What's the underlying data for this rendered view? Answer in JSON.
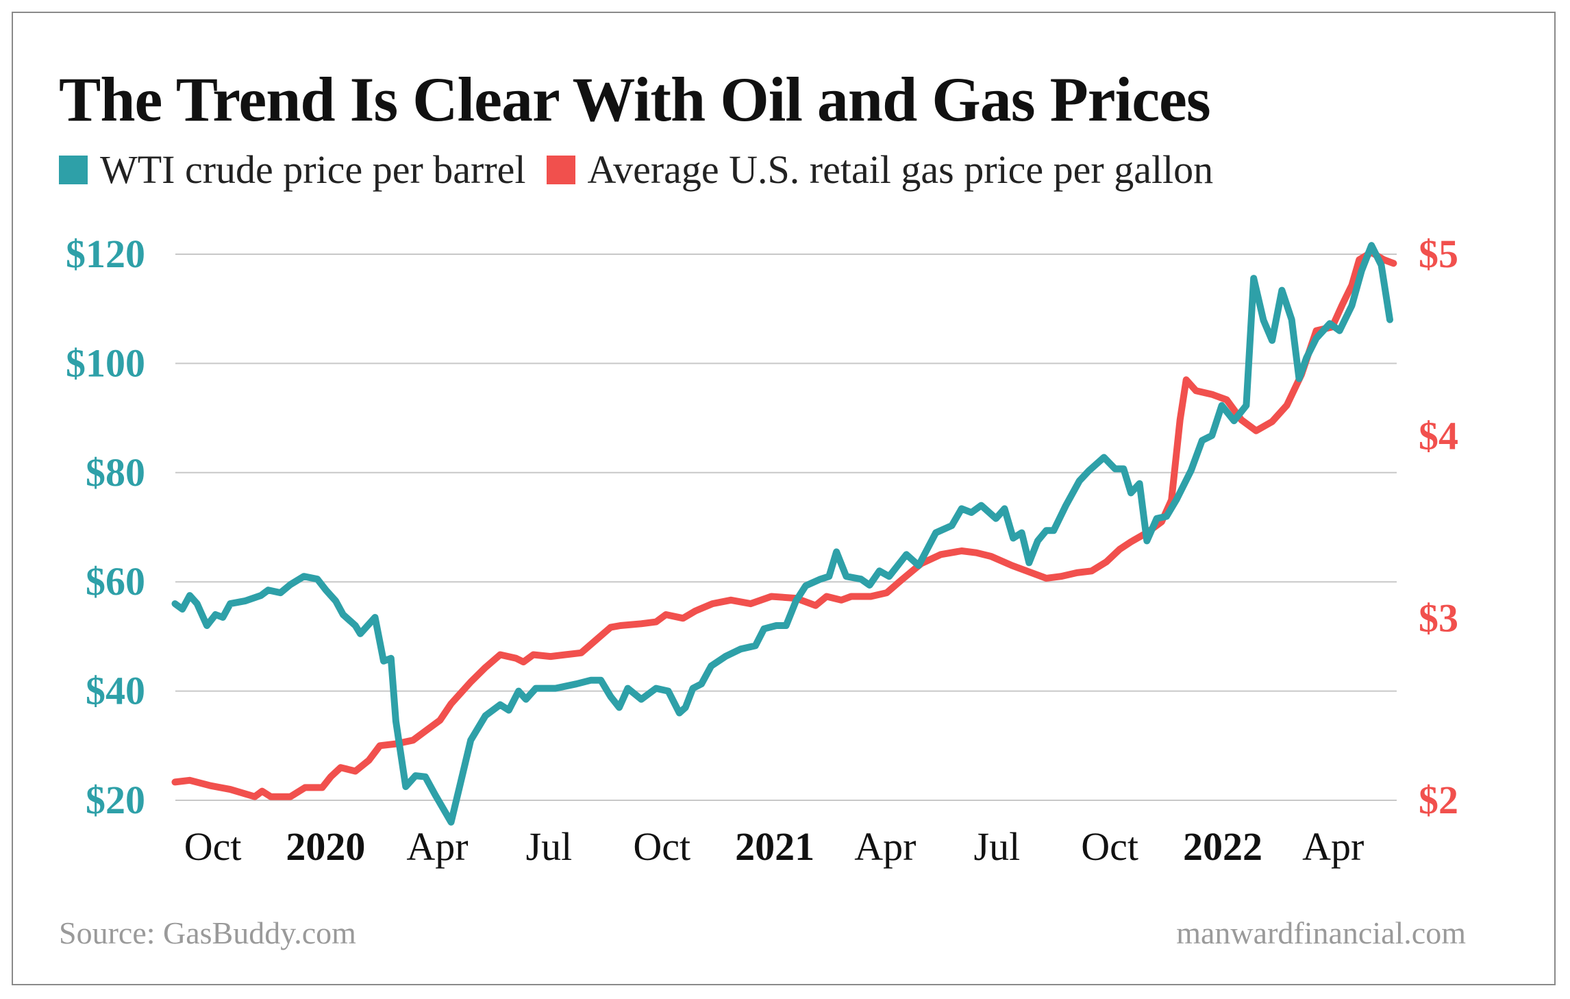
{
  "chart_data": {
    "type": "line",
    "title": "The Trend Is Clear With Oil and Gas Prices",
    "x_type": "date",
    "xlim": [
      "2019-08-29",
      "2022-05-18"
    ],
    "x_ticks": [
      {
        "date": "2019-10-01",
        "label": "Oct",
        "bold": false
      },
      {
        "date": "2020-01-01",
        "label": "2020",
        "bold": true
      },
      {
        "date": "2020-04-01",
        "label": "Apr",
        "bold": false
      },
      {
        "date": "2020-07-01",
        "label": "Jul",
        "bold": false
      },
      {
        "date": "2020-10-01",
        "label": "Oct",
        "bold": false
      },
      {
        "date": "2021-01-01",
        "label": "2021",
        "bold": true
      },
      {
        "date": "2021-04-01",
        "label": "Apr",
        "bold": false
      },
      {
        "date": "2021-07-01",
        "label": "Jul",
        "bold": false
      },
      {
        "date": "2021-10-01",
        "label": "Oct",
        "bold": false
      },
      {
        "date": "2022-01-01",
        "label": "2022",
        "bold": true
      },
      {
        "date": "2022-04-01",
        "label": "Apr",
        "bold": false
      }
    ],
    "y_left": {
      "ylim": [
        20,
        120
      ],
      "ticks": [
        {
          "v": 120,
          "label": "$120"
        },
        {
          "v": 100,
          "label": "$100"
        },
        {
          "v": 80,
          "label": "$80"
        },
        {
          "v": 60,
          "label": "$60"
        },
        {
          "v": 40,
          "label": "$40"
        },
        {
          "v": 20,
          "label": "$20"
        }
      ],
      "color": "#2ea0a8"
    },
    "y_right": {
      "ylim": [
        2,
        5
      ],
      "ticks": [
        {
          "v": 5,
          "label": "$5"
        },
        {
          "v": 4,
          "label": "$4"
        },
        {
          "v": 3,
          "label": "$3"
        },
        {
          "v": 2,
          "label": "$2"
        }
      ],
      "color": "#f1504d"
    },
    "grid": true,
    "legend_placement": "top-left",
    "series": [
      {
        "name": "WTI crude price per barrel",
        "axis": "left",
        "color": "#2ea0a8",
        "points": [
          [
            "2019-08-29",
            56
          ],
          [
            "2019-09-04",
            55
          ],
          [
            "2019-09-10",
            57.5
          ],
          [
            "2019-09-16",
            56
          ],
          [
            "2019-09-24",
            52
          ],
          [
            "2019-10-01",
            54
          ],
          [
            "2019-10-07",
            53.5
          ],
          [
            "2019-10-13",
            56
          ],
          [
            "2019-10-25",
            56.5
          ],
          [
            "2019-11-07",
            57.5
          ],
          [
            "2019-11-13",
            58.5
          ],
          [
            "2019-11-23",
            58
          ],
          [
            "2019-12-01",
            59.5
          ],
          [
            "2019-12-12",
            61
          ],
          [
            "2019-12-23",
            60.5
          ],
          [
            "2019-12-30",
            58.5
          ],
          [
            "2020-01-07",
            56.5
          ],
          [
            "2020-01-13",
            54
          ],
          [
            "2020-01-23",
            52
          ],
          [
            "2020-01-27",
            50.5
          ],
          [
            "2020-02-08",
            53.5
          ],
          [
            "2020-02-15",
            45.5
          ],
          [
            "2020-02-21",
            46
          ],
          [
            "2020-02-25",
            34.5
          ],
          [
            "2020-03-04",
            22.5
          ],
          [
            "2020-03-12",
            24.5
          ],
          [
            "2020-03-20",
            24.3
          ],
          [
            "2020-03-28",
            21
          ],
          [
            "2020-04-10",
            16
          ],
          [
            "2020-04-18",
            23.5
          ],
          [
            "2020-04-26",
            31
          ],
          [
            "2020-05-08",
            35.5
          ],
          [
            "2020-05-20",
            37.5
          ],
          [
            "2020-05-27",
            36.5
          ],
          [
            "2020-06-04",
            40
          ],
          [
            "2020-06-10",
            38.5
          ],
          [
            "2020-06-18",
            40.5
          ],
          [
            "2020-07-04",
            40.5
          ],
          [
            "2020-07-21",
            41.3
          ],
          [
            "2020-08-02",
            42
          ],
          [
            "2020-08-10",
            42
          ],
          [
            "2020-08-18",
            39
          ],
          [
            "2020-08-25",
            37
          ],
          [
            "2020-09-01",
            40.5
          ],
          [
            "2020-09-12",
            38.5
          ],
          [
            "2020-09-24",
            40.5
          ],
          [
            "2020-10-04",
            40
          ],
          [
            "2020-10-13",
            36
          ],
          [
            "2020-10-18",
            37
          ],
          [
            "2020-10-24",
            40.5
          ],
          [
            "2020-10-31",
            41.3
          ],
          [
            "2020-11-08",
            44.6
          ],
          [
            "2020-11-20",
            46.4
          ],
          [
            "2020-12-02",
            47.7
          ],
          [
            "2020-12-14",
            48.3
          ],
          [
            "2020-12-21",
            51.4
          ],
          [
            "2020-12-31",
            52
          ],
          [
            "2021-01-08",
            52
          ],
          [
            "2021-01-16",
            56.5
          ],
          [
            "2021-01-24",
            59.3
          ],
          [
            "2021-02-05",
            60.5
          ],
          [
            "2021-02-12",
            61
          ],
          [
            "2021-02-18",
            65.5
          ],
          [
            "2021-02-26",
            61
          ],
          [
            "2021-03-10",
            60.5
          ],
          [
            "2021-03-17",
            59.4
          ],
          [
            "2021-03-25",
            62
          ],
          [
            "2021-04-02",
            61
          ],
          [
            "2021-04-16",
            65
          ],
          [
            "2021-04-26",
            63
          ],
          [
            "2021-05-10",
            69
          ],
          [
            "2021-05-23",
            70.3
          ],
          [
            "2021-05-31",
            73.4
          ],
          [
            "2021-06-08",
            72.7
          ],
          [
            "2021-06-16",
            74
          ],
          [
            "2021-06-28",
            71.6
          ],
          [
            "2021-07-05",
            73.4
          ],
          [
            "2021-07-12",
            68
          ],
          [
            "2021-07-19",
            69
          ],
          [
            "2021-07-25",
            63.5
          ],
          [
            "2021-08-01",
            67.5
          ],
          [
            "2021-08-08",
            69.4
          ],
          [
            "2021-08-14",
            69.4
          ],
          [
            "2021-08-24",
            74
          ],
          [
            "2021-09-04",
            78.5
          ],
          [
            "2021-09-12",
            80.4
          ],
          [
            "2021-09-24",
            82.8
          ],
          [
            "2021-10-03",
            80.7
          ],
          [
            "2021-10-10",
            80.7
          ],
          [
            "2021-10-16",
            76.3
          ],
          [
            "2021-10-23",
            78
          ],
          [
            "2021-10-29",
            67.5
          ],
          [
            "2021-11-06",
            71.6
          ],
          [
            "2021-11-14",
            72
          ],
          [
            "2021-11-22",
            75
          ],
          [
            "2021-12-04",
            80.4
          ],
          [
            "2021-12-13",
            85.9
          ],
          [
            "2021-12-21",
            86.8
          ],
          [
            "2021-12-29",
            92.3
          ],
          [
            "2022-01-08",
            89.5
          ],
          [
            "2022-01-18",
            92.3
          ],
          [
            "2022-01-24",
            115.6
          ],
          [
            "2022-02-01",
            107.9
          ],
          [
            "2022-02-08",
            104.2
          ],
          [
            "2022-02-16",
            113.4
          ],
          [
            "2022-02-24",
            108
          ],
          [
            "2022-03-02",
            97.2
          ],
          [
            "2022-03-08",
            101
          ],
          [
            "2022-03-16",
            104.6
          ],
          [
            "2022-03-27",
            107.3
          ],
          [
            "2022-04-04",
            106
          ],
          [
            "2022-04-14",
            110.6
          ],
          [
            "2022-04-22",
            117
          ],
          [
            "2022-04-30",
            121.6
          ],
          [
            "2022-05-08",
            118
          ],
          [
            "2022-05-15",
            108
          ]
        ]
      },
      {
        "name": "Average U.S. retail gas price per gallon",
        "axis": "right",
        "color": "#f1504d",
        "points": [
          [
            "2019-08-29",
            2.1
          ],
          [
            "2019-09-10",
            2.11
          ],
          [
            "2019-09-27",
            2.08
          ],
          [
            "2019-10-13",
            2.06
          ],
          [
            "2019-11-02",
            2.02
          ],
          [
            "2019-11-08",
            2.05
          ],
          [
            "2019-11-15",
            2.02
          ],
          [
            "2019-12-01",
            2.02
          ],
          [
            "2019-12-13",
            2.07
          ],
          [
            "2019-12-27",
            2.07
          ],
          [
            "2020-01-03",
            2.13
          ],
          [
            "2020-01-11",
            2.18
          ],
          [
            "2020-01-23",
            2.16
          ],
          [
            "2020-02-03",
            2.22
          ],
          [
            "2020-02-12",
            2.3
          ],
          [
            "2020-02-25",
            2.31
          ],
          [
            "2020-03-10",
            2.33
          ],
          [
            "2020-03-20",
            2.38
          ],
          [
            "2020-04-01",
            2.44
          ],
          [
            "2020-04-10",
            2.53
          ],
          [
            "2020-04-26",
            2.65
          ],
          [
            "2020-05-08",
            2.73
          ],
          [
            "2020-05-20",
            2.8
          ],
          [
            "2020-06-02",
            2.78
          ],
          [
            "2020-06-08",
            2.76
          ],
          [
            "2020-06-16",
            2.8
          ],
          [
            "2020-06-30",
            2.79
          ],
          [
            "2020-07-12",
            2.8
          ],
          [
            "2020-07-25",
            2.81
          ],
          [
            "2020-08-06",
            2.88
          ],
          [
            "2020-08-18",
            2.95
          ],
          [
            "2020-08-26",
            2.96
          ],
          [
            "2020-09-12",
            2.97
          ],
          [
            "2020-09-24",
            2.98
          ],
          [
            "2020-10-02",
            3.02
          ],
          [
            "2020-10-16",
            3.0
          ],
          [
            "2020-10-26",
            3.04
          ],
          [
            "2020-11-09",
            3.08
          ],
          [
            "2020-11-24",
            3.1
          ],
          [
            "2020-12-10",
            3.08
          ],
          [
            "2020-12-27",
            3.12
          ],
          [
            "2021-01-16",
            3.11
          ],
          [
            "2021-02-01",
            3.07
          ],
          [
            "2021-02-10",
            3.12
          ],
          [
            "2021-02-22",
            3.1
          ],
          [
            "2021-03-02",
            3.12
          ],
          [
            "2021-03-18",
            3.12
          ],
          [
            "2021-03-31",
            3.14
          ],
          [
            "2021-04-12",
            3.21
          ],
          [
            "2021-04-28",
            3.3
          ],
          [
            "2021-05-14",
            3.35
          ],
          [
            "2021-05-31",
            3.37
          ],
          [
            "2021-06-12",
            3.36
          ],
          [
            "2021-06-24",
            3.34
          ],
          [
            "2021-07-11",
            3.29
          ],
          [
            "2021-07-27",
            3.25
          ],
          [
            "2021-08-08",
            3.22
          ],
          [
            "2021-08-20",
            3.23
          ],
          [
            "2021-09-02",
            3.25
          ],
          [
            "2021-09-14",
            3.26
          ],
          [
            "2021-09-26",
            3.31
          ],
          [
            "2021-10-07",
            3.38
          ],
          [
            "2021-10-16",
            3.42
          ],
          [
            "2021-10-29",
            3.47
          ],
          [
            "2021-11-10",
            3.53
          ],
          [
            "2021-11-18",
            3.65
          ],
          [
            "2021-11-25",
            4.09
          ],
          [
            "2021-11-30",
            4.31
          ],
          [
            "2021-12-08",
            4.25
          ],
          [
            "2021-12-21",
            4.23
          ],
          [
            "2022-01-02",
            4.2
          ],
          [
            "2022-01-14",
            4.09
          ],
          [
            "2022-01-26",
            4.03
          ],
          [
            "2022-02-08",
            4.08
          ],
          [
            "2022-02-20",
            4.17
          ],
          [
            "2022-03-04",
            4.34
          ],
          [
            "2022-03-16",
            4.58
          ],
          [
            "2022-03-29",
            4.6
          ],
          [
            "2022-04-06",
            4.72
          ],
          [
            "2022-04-14",
            4.83
          ],
          [
            "2022-04-20",
            4.97
          ],
          [
            "2022-04-30",
            5.01
          ],
          [
            "2022-05-10",
            4.97
          ],
          [
            "2022-05-18",
            4.95
          ]
        ]
      }
    ]
  },
  "footer": {
    "source": "Source: GasBuddy.com",
    "credit": "manwardfinancial.com"
  }
}
